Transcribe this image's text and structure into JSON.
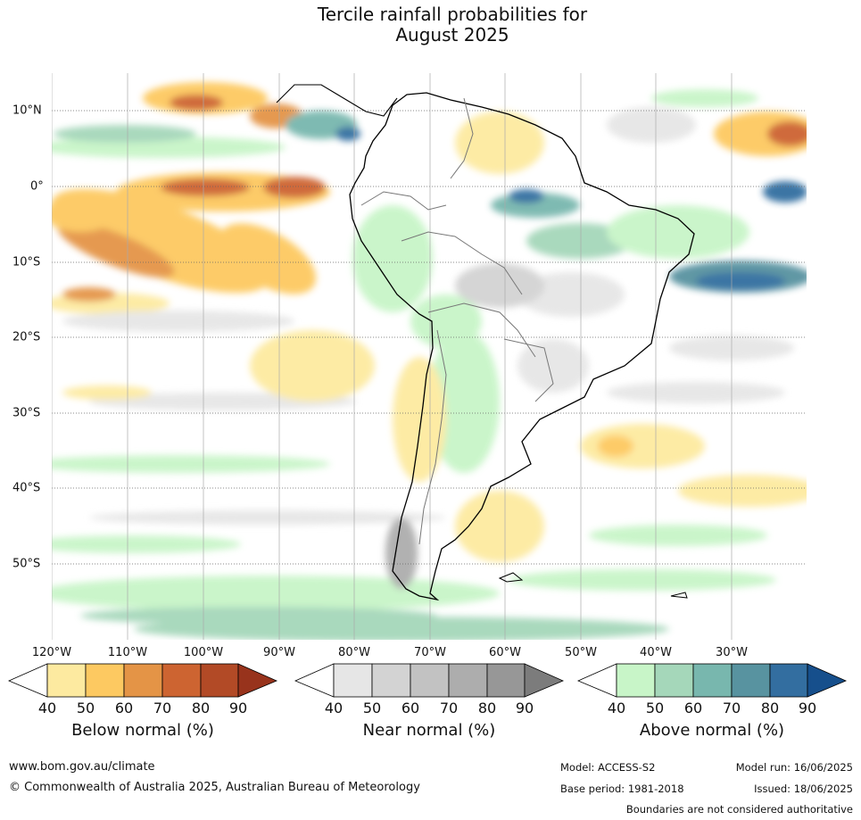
{
  "title": {
    "line1": "Tercile rainfall probabilities for",
    "line2": "August 2025"
  },
  "map": {
    "region": "South America",
    "longitude_labels": [
      "120°W",
      "110°W",
      "100°W",
      "90°W",
      "80°W",
      "70°W",
      "60°W",
      "50°W",
      "40°W",
      "30°W"
    ],
    "latitude_labels": [
      "10°N",
      "0°",
      "10°S",
      "20°S",
      "30°S",
      "40°S",
      "50°S"
    ],
    "colors": {
      "ocean_white": "#ffffff",
      "below": [
        "#fdeaa0",
        "#fdc961",
        "#e49446",
        "#cd6431",
        "#b24a26",
        "#98331c"
      ],
      "near": [
        "#e6e6e6",
        "#d3d3d3",
        "#c2c2c2",
        "#adadad",
        "#979797",
        "#7c7c7c"
      ],
      "above": [
        "#c8f5c8",
        "#a5d7ba",
        "#78b7ae",
        "#5893a0",
        "#336ea0",
        "#164f8c"
      ]
    }
  },
  "colorbars": [
    {
      "title": "Below normal (%)",
      "ticks": [
        "40",
        "50",
        "60",
        "70",
        "80",
        "90"
      ]
    },
    {
      "title": "Near normal (%)",
      "ticks": [
        "40",
        "50",
        "60",
        "70",
        "80",
        "90"
      ]
    },
    {
      "title": "Above normal (%)",
      "ticks": [
        "40",
        "50",
        "60",
        "70",
        "80",
        "90"
      ]
    }
  ],
  "footer": {
    "website": "www.bom.gov.au/climate",
    "copyright": "© Commonwealth of Australia 2025, Australian Bureau of Meteorology",
    "model": "Model: ACCESS-S2",
    "base_period": "Base period: 1981-2018",
    "model_run": "Model run: 16/06/2025",
    "issued": "Issued: 18/06/2025",
    "disclaimer": "Boundaries are not considered authoritative"
  }
}
